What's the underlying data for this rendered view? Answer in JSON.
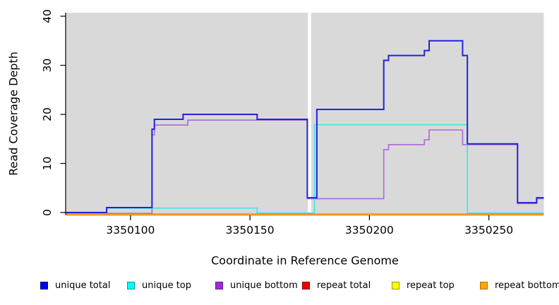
{
  "figure": {
    "background": "#ffffff",
    "panel_background": "#d9d9d9"
  },
  "chart_data": {
    "type": "line",
    "subtype": "step-after-coverage-plot",
    "title": "",
    "xlabel": "Coordinate in Reference Genome",
    "ylabel": "Read Coverage Depth",
    "xlim": [
      3350073,
      3350273
    ],
    "ylim": [
      0,
      40
    ],
    "x_ticks": [
      3350100,
      3350150,
      3350200,
      3350250
    ],
    "x_tick_labels": [
      "3350100",
      "3350150",
      "3350200",
      "3350250"
    ],
    "y_ticks": [
      0,
      10,
      20,
      30,
      40
    ],
    "y_tick_labels": [
      "0",
      "10",
      "20",
      "30",
      "40"
    ],
    "grid": false,
    "legend_position": "bottom",
    "gap_band": {
      "start": 3350174.2,
      "end": 3350175.6,
      "color": "#ffffff"
    },
    "series": [
      {
        "name": "repeat total",
        "color": "#e03434",
        "points": [
          [
            3350073,
            0
          ],
          [
            3350273,
            0
          ]
        ]
      },
      {
        "name": "repeat top",
        "color": "#e8e800",
        "points": [
          [
            3350073,
            0
          ],
          [
            3350273,
            0
          ]
        ]
      },
      {
        "name": "repeat bottom",
        "color": "#ff9d1e",
        "points": [
          [
            3350073,
            0
          ],
          [
            3350273,
            0
          ]
        ]
      },
      {
        "name": "unique bottom",
        "color": "#b06fd8",
        "points": [
          [
            3350073,
            0
          ],
          [
            3350109,
            16
          ],
          [
            3350110,
            18
          ],
          [
            3350124,
            19
          ],
          [
            3350174,
            3
          ],
          [
            3350206,
            13
          ],
          [
            3350208,
            14
          ],
          [
            3350223,
            15
          ],
          [
            3350225,
            17
          ],
          [
            3350239,
            14
          ],
          [
            3350262,
            2
          ],
          [
            3350270,
            3
          ],
          [
            3350273,
            3
          ]
        ]
      },
      {
        "name": "unique top",
        "color": "#45e6e6",
        "points": [
          [
            3350073,
            0
          ],
          [
            3350090,
            1
          ],
          [
            3350153,
            0
          ],
          [
            3350177,
            18
          ],
          [
            3350241,
            0
          ],
          [
            3350273,
            0
          ]
        ]
      },
      {
        "name": "unique total",
        "color": "#2323dc",
        "points": [
          [
            3350073,
            0
          ],
          [
            3350090,
            1
          ],
          [
            3350109,
            17
          ],
          [
            3350110,
            19
          ],
          [
            3350122,
            20
          ],
          [
            3350153,
            19
          ],
          [
            3350174,
            3
          ],
          [
            3350178,
            21
          ],
          [
            3350206,
            31
          ],
          [
            3350208,
            32
          ],
          [
            3350223,
            33
          ],
          [
            3350225,
            35
          ],
          [
            3350239,
            32
          ],
          [
            3350241,
            14
          ],
          [
            3350262,
            2
          ],
          [
            3350270,
            3
          ],
          [
            3350273,
            3
          ]
        ]
      }
    ],
    "legend": [
      {
        "label": "unique total",
        "color": "#0000e6",
        "border": "#000099"
      },
      {
        "label": "unique top",
        "color": "#00ffff",
        "border": "#009999"
      },
      {
        "label": "unique bottom",
        "color": "#a02be0",
        "border": "#5c1a80"
      },
      {
        "label": "repeat total",
        "color": "#ee0000",
        "border": "#8b0000"
      },
      {
        "label": "repeat top",
        "color": "#ffff00",
        "border": "#999900"
      },
      {
        "label": "repeat bottom",
        "color": "#ffa500",
        "border": "#b37400"
      }
    ]
  }
}
